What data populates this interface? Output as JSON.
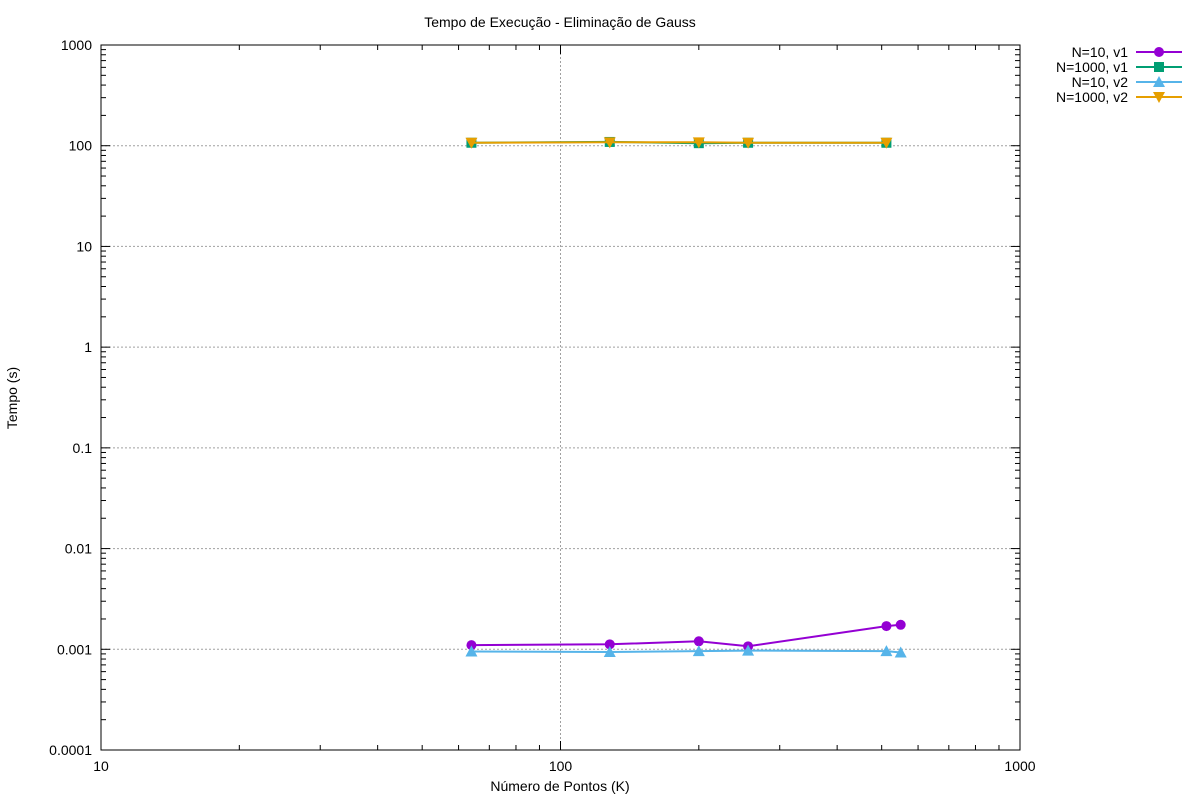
{
  "chart_data": {
    "type": "line",
    "title": "Tempo de Execução - Eliminação de Gauss",
    "xlabel": "Número de Pontos (K)",
    "ylabel": "Tempo (s)",
    "x_scale": "log",
    "y_scale": "log",
    "xlim": [
      10,
      1000
    ],
    "ylim": [
      0.0001,
      1000
    ],
    "x_ticks": [
      10,
      100,
      1000
    ],
    "x_tick_labels": [
      "10",
      "100",
      "1000"
    ],
    "y_ticks": [
      0.0001,
      0.001,
      0.01,
      0.1,
      1,
      10,
      100,
      1000
    ],
    "y_tick_labels": [
      "0.0001",
      "0.001",
      "0.01",
      "0.1",
      "1",
      "10",
      "100",
      "1000"
    ],
    "grid": true,
    "legend_position": "top-right outside",
    "series": [
      {
        "name": "N=10, v1",
        "color": "#9400d3",
        "marker": "circle",
        "x": [
          64,
          128,
          200,
          256,
          512,
          550
        ],
        "y": [
          0.0011,
          0.00112,
          0.0012,
          0.00107,
          0.0017,
          0.00175
        ]
      },
      {
        "name": "N=1000, v1",
        "color": "#009e73",
        "marker": "square",
        "x": [
          64,
          128,
          200,
          256,
          512
        ],
        "y": [
          107,
          109,
          106,
          107,
          107
        ]
      },
      {
        "name": "N=10, v2",
        "color": "#56b4e9",
        "marker": "triangle-up",
        "x": [
          64,
          128,
          200,
          256,
          512,
          550
        ],
        "y": [
          0.00095,
          0.00094,
          0.00096,
          0.00097,
          0.00096,
          0.00093
        ]
      },
      {
        "name": "N=1000, v2",
        "color": "#e69f00",
        "marker": "triangle-down",
        "x": [
          64,
          128,
          200,
          256,
          512
        ],
        "y": [
          107,
          108,
          108,
          107,
          107
        ]
      }
    ]
  }
}
